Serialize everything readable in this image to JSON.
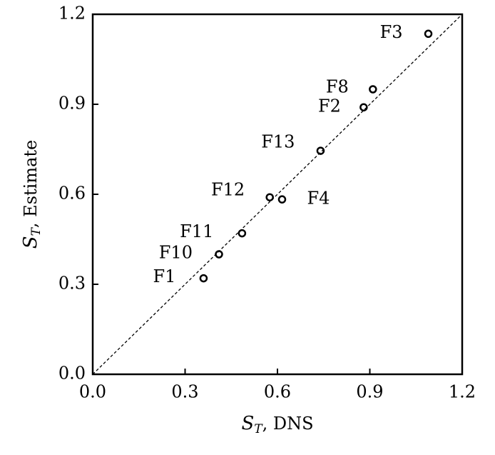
{
  "chart_data": {
    "type": "scatter",
    "x_label": {
      "symbol": "S",
      "subscript": "T",
      "text": ", DNS"
    },
    "y_label": {
      "symbol": "S",
      "subscript": "T",
      "text": ", Estimate"
    },
    "series": [
      {
        "color": "#000000",
        "labels": [
          "F3",
          "F8",
          "F2",
          "F13",
          "F12",
          "F4",
          "F11",
          "F10",
          "F1"
        ],
        "x": [
          1.09,
          0.91,
          0.88,
          0.74,
          0.575,
          0.615,
          0.485,
          0.41,
          0.36
        ],
        "values": [
          1.135,
          0.95,
          0.89,
          0.745,
          0.59,
          0.583,
          0.47,
          0.4,
          0.32
        ]
      }
    ],
    "xlim": [
      0,
      1.2
    ],
    "ylim": [
      0,
      1.2
    ],
    "xticks": [
      {
        "value": 0,
        "label": "0.0"
      },
      0.3,
      0.6,
      0.9,
      1.2
    ],
    "yticks": [
      {
        "value": 0,
        "label": "0.0"
      },
      0.3,
      0.6,
      0.9,
      1.2
    ],
    "identity_line": true,
    "grid": false
  }
}
